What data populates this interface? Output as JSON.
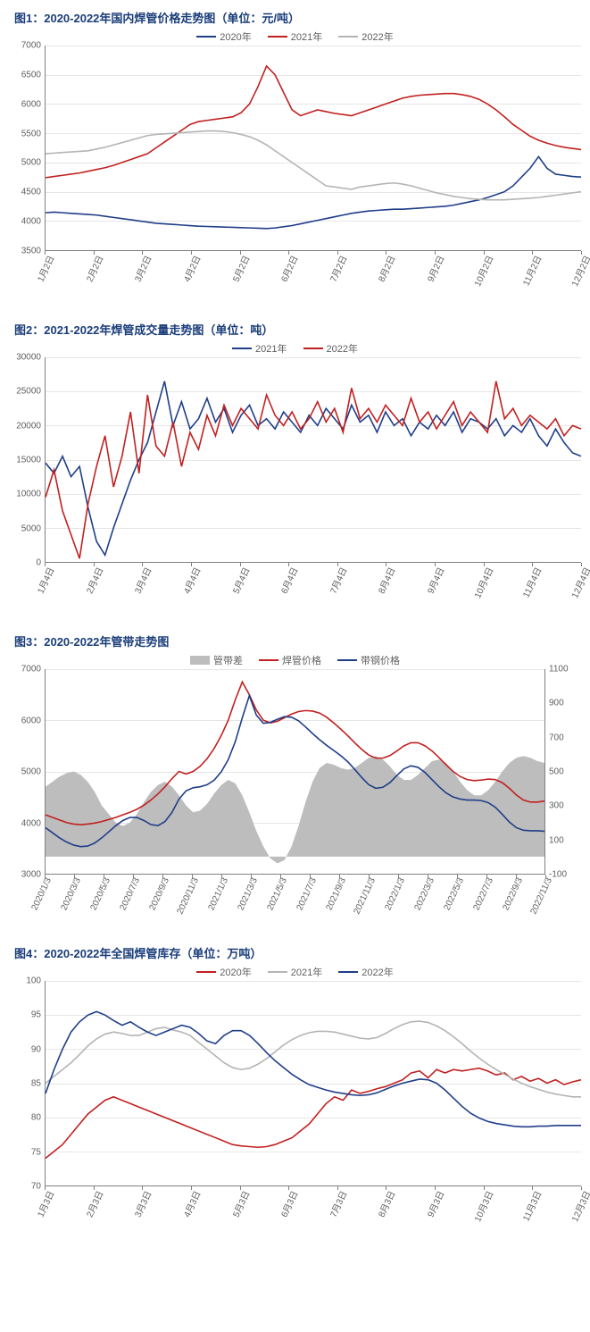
{
  "colors": {
    "title": "#1a3d7a",
    "axis": "#808080",
    "grid": "#e6e6e6",
    "text": "#606060",
    "s2020": "#1f3e88",
    "s2021": "#c22020",
    "s2022_gray": "#b4b4b4",
    "s2021_blue": "#1f3e88",
    "s2022_red": "#c22020",
    "area_fill": "#bdbdbd",
    "hanguan": "#c22020",
    "daijia": "#1f3e88",
    "inv2020": "#c22020",
    "inv2021": "#b4b4b4",
    "inv2022": "#1f3e88"
  },
  "chart1": {
    "title": "图1：2020-2022年国内焊管价格走势图（单位：元/吨）",
    "type": "line",
    "ylim": [
      3500,
      7000
    ],
    "yticks": [
      3500,
      4000,
      4500,
      5000,
      5500,
      6000,
      6500,
      7000
    ],
    "xlabels": [
      "1月2日",
      "2月2日",
      "3月2日",
      "4月2日",
      "5月2日",
      "6月2日",
      "7月2日",
      "8月2日",
      "9月2日",
      "10月2日",
      "11月2日",
      "12月2日"
    ],
    "legend": [
      {
        "label": "2020年",
        "colorKey": "s2020"
      },
      {
        "label": "2021年",
        "colorKey": "s2021"
      },
      {
        "label": "2022年",
        "colorKey": "s2022_gray"
      }
    ],
    "series": {
      "s2020": [
        4140,
        4150,
        4140,
        4130,
        4120,
        4110,
        4100,
        4080,
        4060,
        4040,
        4020,
        4000,
        3980,
        3960,
        3950,
        3940,
        3930,
        3920,
        3910,
        3905,
        3900,
        3895,
        3890,
        3885,
        3880,
        3875,
        3870,
        3880,
        3900,
        3920,
        3950,
        3980,
        4010,
        4040,
        4070,
        4100,
        4130,
        4150,
        4170,
        4180,
        4190,
        4200,
        4200,
        4210,
        4220,
        4230,
        4240,
        4250,
        4270,
        4300,
        4330,
        4360,
        4400,
        4450,
        4500,
        4600,
        4750,
        4900,
        5100,
        4900,
        4800,
        4780,
        4760,
        4750
      ],
      "s2021": [
        4740,
        4760,
        4780,
        4800,
        4820,
        4850,
        4880,
        4910,
        4950,
        5000,
        5050,
        5100,
        5150,
        5250,
        5350,
        5450,
        5550,
        5650,
        5700,
        5720,
        5740,
        5760,
        5780,
        5850,
        6000,
        6300,
        6650,
        6500,
        6200,
        5900,
        5800,
        5850,
        5900,
        5870,
        5840,
        5820,
        5800,
        5850,
        5900,
        5950,
        6000,
        6050,
        6100,
        6130,
        6150,
        6160,
        6170,
        6180,
        6180,
        6160,
        6130,
        6080,
        6000,
        5900,
        5780,
        5650,
        5550,
        5450,
        5380,
        5330,
        5290,
        5260,
        5240,
        5220
      ],
      "s2022_gray": [
        5150,
        5160,
        5170,
        5180,
        5190,
        5200,
        5230,
        5260,
        5300,
        5340,
        5380,
        5420,
        5460,
        5480,
        5490,
        5500,
        5510,
        5520,
        5530,
        5540,
        5540,
        5530,
        5510,
        5480,
        5440,
        5380,
        5300,
        5200,
        5100,
        5000,
        4900,
        4800,
        4700,
        4600,
        4580,
        4560,
        4540,
        4580,
        4600,
        4620,
        4640,
        4650,
        4630,
        4600,
        4560,
        4520,
        4480,
        4450,
        4420,
        4400,
        4380,
        4370,
        4360,
        4360,
        4360,
        4370,
        4380,
        4390,
        4400,
        4420,
        4440,
        4460,
        4480,
        4500
      ]
    }
  },
  "chart2": {
    "title": "图2：2021-2022年焊管成交量走势图（单位：吨）",
    "type": "line",
    "ylim": [
      0,
      30000
    ],
    "yticks": [
      0,
      5000,
      10000,
      15000,
      20000,
      25000,
      30000
    ],
    "xlabels": [
      "1月4日",
      "2月4日",
      "3月4日",
      "4月4日",
      "5月4日",
      "6月4日",
      "7月4日",
      "8月4日",
      "9月4日",
      "10月4日",
      "11月4日",
      "12月4日"
    ],
    "legend": [
      {
        "label": "2021年",
        "colorKey": "s2021_blue"
      },
      {
        "label": "2022年",
        "colorKey": "s2022_red"
      }
    ],
    "series": {
      "s2021_blue": [
        14500,
        13000,
        15500,
        12500,
        14000,
        8000,
        3000,
        1000,
        5000,
        8500,
        12000,
        15000,
        17500,
        22000,
        26500,
        20000,
        23500,
        19500,
        21000,
        24000,
        20500,
        22500,
        19000,
        21500,
        23000,
        20000,
        21000,
        19500,
        22000,
        20500,
        19000,
        21500,
        20000,
        22500,
        21000,
        19500,
        23000,
        20500,
        21500,
        19000,
        22000,
        20000,
        21000,
        18500,
        20500,
        19500,
        21500,
        20000,
        22000,
        19000,
        21000,
        20500,
        19500,
        21000,
        18500,
        20000,
        19000,
        21000,
        18500,
        17000,
        19500,
        17500,
        16000,
        15500
      ],
      "s2022_red": [
        9500,
        13500,
        7500,
        4000,
        500,
        8500,
        14000,
        18500,
        11000,
        15500,
        22000,
        13000,
        24500,
        17000,
        15500,
        20500,
        14000,
        19000,
        16500,
        21500,
        18500,
        23000,
        20000,
        22500,
        21000,
        19500,
        24500,
        21500,
        20000,
        22000,
        19500,
        21000,
        23500,
        20500,
        22500,
        19000,
        25500,
        21000,
        22500,
        20500,
        23000,
        21500,
        20000,
        24000,
        20500,
        22000,
        19500,
        21500,
        23500,
        20000,
        22000,
        20500,
        19000,
        26500,
        21000,
        22500,
        20000,
        21500,
        20500,
        19500,
        21000,
        18500,
        20000,
        19500
      ]
    }
  },
  "chart3": {
    "title": "图3：2020-2022年管带走势图",
    "type": "line+area",
    "ylim": [
      3000,
      7000
    ],
    "ylim2": [
      -100,
      1100
    ],
    "yticks": [
      3000,
      4000,
      5000,
      6000,
      7000
    ],
    "yticks2": [
      -100,
      100,
      300,
      500,
      700,
      900,
      1100
    ],
    "xlabels": [
      "2020/1/3",
      "2020/3/3",
      "2020/5/3",
      "2020/7/3",
      "2020/9/3",
      "2020/11/3",
      "2021/1/3",
      "2021/3/3",
      "2021/5/3",
      "2021/7/3",
      "2021/9/3",
      "2021/11/3",
      "2022/1/3",
      "2022/3/3",
      "2022/5/3",
      "2022/7/3",
      "2022/9/3",
      "2022/11/3"
    ],
    "legend": [
      {
        "label": "管带差",
        "colorKey": "area_fill",
        "type": "block"
      },
      {
        "label": "焊管价格",
        "colorKey": "hanguan"
      },
      {
        "label": "带钢价格",
        "colorKey": "daijia"
      }
    ],
    "series": {
      "area": [
        410,
        440,
        470,
        490,
        500,
        480,
        440,
        380,
        300,
        250,
        200,
        180,
        200,
        250,
        320,
        380,
        420,
        440,
        410,
        360,
        300,
        260,
        270,
        310,
        370,
        420,
        450,
        430,
        360,
        260,
        150,
        60,
        -10,
        -40,
        -20,
        60,
        180,
        320,
        440,
        520,
        550,
        540,
        520,
        510,
        520,
        550,
        580,
        590,
        570,
        530,
        480,
        450,
        450,
        480,
        520,
        560,
        570,
        550,
        500,
        440,
        390,
        360,
        360,
        390,
        440,
        500,
        550,
        580,
        590,
        580,
        560,
        550
      ],
      "hanguan": [
        4150,
        4100,
        4050,
        4000,
        3970,
        3960,
        3970,
        3990,
        4020,
        4060,
        4100,
        4150,
        4200,
        4260,
        4340,
        4440,
        4560,
        4700,
        4860,
        5000,
        4950,
        5000,
        5100,
        5250,
        5450,
        5700,
        6000,
        6400,
        6750,
        6500,
        6200,
        6000,
        5950,
        5980,
        6050,
        6120,
        6170,
        6190,
        6180,
        6140,
        6060,
        5950,
        5830,
        5700,
        5560,
        5430,
        5320,
        5260,
        5260,
        5310,
        5400,
        5500,
        5560,
        5560,
        5500,
        5400,
        5270,
        5130,
        5000,
        4900,
        4840,
        4820,
        4830,
        4850,
        4840,
        4780,
        4670,
        4540,
        4440,
        4400,
        4400,
        4420
      ],
      "daijia": [
        3900,
        3800,
        3700,
        3620,
        3560,
        3530,
        3540,
        3600,
        3700,
        3820,
        3940,
        4040,
        4100,
        4100,
        4040,
        3960,
        3940,
        4020,
        4200,
        4460,
        4620,
        4680,
        4700,
        4740,
        4830,
        4990,
        5230,
        5580,
        6050,
        6480,
        6100,
        5940,
        5960,
        6020,
        6070,
        6060,
        5990,
        5870,
        5740,
        5620,
        5510,
        5410,
        5310,
        5190,
        5040,
        4880,
        4740,
        4670,
        4690,
        4780,
        4920,
        5050,
        5110,
        5080,
        4980,
        4840,
        4700,
        4580,
        4500,
        4460,
        4440,
        4440,
        4430,
        4390,
        4300,
        4160,
        4010,
        3900,
        3850,
        3840,
        3840,
        3830
      ]
    }
  },
  "chart4": {
    "title": "图4：2020-2022年全国焊管库存（单位：万吨）",
    "type": "line",
    "ylim": [
      70,
      100
    ],
    "yticks": [
      70,
      75,
      80,
      85,
      90,
      95,
      100
    ],
    "xlabels": [
      "1月3日",
      "2月3日",
      "3月3日",
      "4月3日",
      "5月3日",
      "6月3日",
      "7月3日",
      "8月3日",
      "9月3日",
      "10月3日",
      "11月3日",
      "12月3日"
    ],
    "legend": [
      {
        "label": "2020年",
        "colorKey": "inv2020"
      },
      {
        "label": "2021年",
        "colorKey": "inv2021"
      },
      {
        "label": "2022年",
        "colorKey": "inv2022"
      }
    ],
    "series": {
      "inv2020": [
        74,
        75,
        76,
        77.5,
        79,
        80.5,
        81.5,
        82.5,
        83,
        82.5,
        82,
        81.5,
        81,
        80.5,
        80,
        79.5,
        79,
        78.5,
        78,
        77.5,
        77,
        76.5,
        76,
        75.8,
        75.7,
        75.6,
        75.7,
        76,
        76.5,
        77,
        78,
        79,
        80.5,
        82,
        83,
        82.5,
        84,
        83.5,
        83.8,
        84.2,
        84.5,
        85,
        85.5,
        86.5,
        86.8,
        85.8,
        87,
        86.5,
        87,
        86.8,
        87,
        87.2,
        86.8,
        86.2,
        86.5,
        85.5,
        86,
        85.3,
        85.7,
        85,
        85.5,
        84.8,
        85.2,
        85.5
      ],
      "inv2021": [
        85,
        86,
        87,
        88,
        89.2,
        90.5,
        91.5,
        92.2,
        92.5,
        92.3,
        92,
        92,
        92.5,
        93,
        93.2,
        92.8,
        92.5,
        92,
        91,
        90,
        89,
        88,
        87.3,
        87,
        87.2,
        87.8,
        88.6,
        89.6,
        90.6,
        91.4,
        92,
        92.4,
        92.6,
        92.6,
        92.5,
        92.2,
        91.9,
        91.6,
        91.5,
        91.7,
        92.3,
        93,
        93.6,
        94,
        94.1,
        93.9,
        93.4,
        92.7,
        91.8,
        90.8,
        89.7,
        88.7,
        87.8,
        87,
        86.3,
        85.6,
        85,
        84.5,
        84.1,
        83.7,
        83.4,
        83.2,
        83,
        83
      ],
      "inv2022": [
        83.5,
        87,
        90,
        92.5,
        94,
        95,
        95.5,
        95,
        94.2,
        93.5,
        94,
        93.2,
        92.5,
        92,
        92.5,
        93,
        93.5,
        93.2,
        92.3,
        91.2,
        90.8,
        92,
        92.7,
        92.7,
        92,
        90.8,
        89.5,
        88.3,
        87.3,
        86.3,
        85.5,
        84.8,
        84.4,
        84,
        83.7,
        83.5,
        83.3,
        83.2,
        83.3,
        83.6,
        84.1,
        84.6,
        85,
        85.3,
        85.6,
        85.5,
        85,
        84,
        82.8,
        81.6,
        80.6,
        79.9,
        79.4,
        79.1,
        78.9,
        78.7,
        78.6,
        78.6,
        78.7,
        78.7,
        78.8,
        78.8,
        78.8,
        78.8
      ]
    }
  }
}
